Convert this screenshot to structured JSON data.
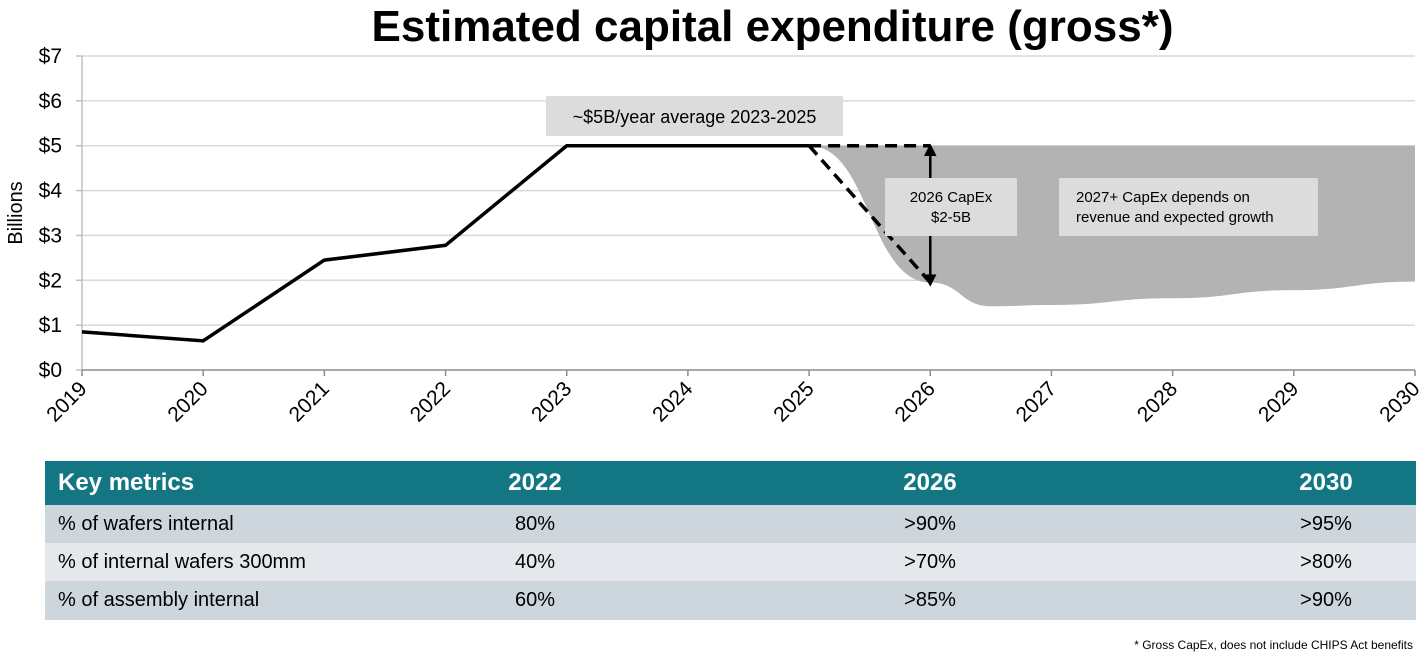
{
  "chart_data": {
    "type": "line",
    "title": "Estimated capital expenditure (gross*)",
    "ylabel": "Billions",
    "xlabel": "",
    "ylim": [
      0,
      7
    ],
    "xlim": [
      2019,
      2030
    ],
    "y_ticks": [
      "$0",
      "$1",
      "$2",
      "$3",
      "$4",
      "$5",
      "$6",
      "$7"
    ],
    "x_ticks": [
      "2019",
      "2020",
      "2021",
      "2022",
      "2023",
      "2024",
      "2025",
      "2026",
      "2027",
      "2028",
      "2029",
      "2030"
    ],
    "grid": "horizontal",
    "series": [
      {
        "style": "solid",
        "x": [
          2019,
          2020,
          2021,
          2022,
          2023,
          2025
        ],
        "y": [
          0.85,
          0.65,
          2.45,
          2.78,
          5.0,
          5.0
        ]
      },
      {
        "style": "dashed",
        "x": [
          2025,
          2026
        ],
        "y": [
          5.0,
          1.95
        ]
      },
      {
        "style": "dashed",
        "x": [
          2025,
          2026
        ],
        "y": [
          5.0,
          5.0
        ]
      }
    ],
    "range_area": {
      "x": [
        2025,
        2026,
        2026.5,
        2027,
        2028,
        2029,
        2030
      ],
      "upper": [
        5.0,
        5.0,
        5.0,
        5.0,
        5.0,
        5.0,
        5.0
      ],
      "lower": [
        5.0,
        1.95,
        1.42,
        1.45,
        1.6,
        1.78,
        1.97
      ]
    },
    "annotations": [
      "~$5B/year average 2023-2025",
      "2026 CapEx",
      "$2-5B",
      "2027+ CapEx depends on",
      "revenue and expected growth"
    ],
    "colors": {
      "line": "#000000",
      "area": "#b3b3b3",
      "grid": "#d9d9d9",
      "annotation_box": "#dcdcdc"
    }
  },
  "table": {
    "header": [
      "Key metrics",
      "2022",
      "2026",
      "2030"
    ],
    "rows": [
      [
        "% of wafers internal",
        "80%",
        ">90%",
        ">95%"
      ],
      [
        "% of internal wafers 300mm",
        "40%",
        ">70%",
        ">80%"
      ],
      [
        "% of assembly internal",
        "60%",
        ">85%",
        ">90%"
      ]
    ],
    "colors": {
      "header_bg": "#137683",
      "row_dark": "#cdd5dd",
      "row_light": "#e4e8ec"
    }
  },
  "footnote": "* Gross CapEx, does not include CHIPS Act benefits"
}
